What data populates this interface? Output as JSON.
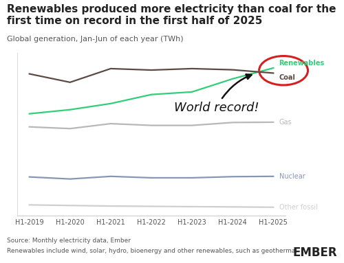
{
  "chart_data": {
    "type": "line",
    "title": "Renewables produced more electricity than coal for the first time on record in the first half of 2025",
    "subtitle": "Global generation, Jan-Jun of each year (TWh)",
    "source": "Source: Monthly electricity data, Ember",
    "footnote": "Renewables include wind, solar, hydro, bioenergy and other renewables, such as geothermal",
    "logo": "EMBER",
    "annotations": [
      "World record!"
    ],
    "categories": [
      "H1-2019",
      "H1-2020",
      "H1-2021",
      "H1-2022",
      "H1-2023",
      "H1-2024",
      "H1-2025"
    ],
    "series": [
      {
        "name": "Renewables",
        "color": "#2fcf78",
        "values": [
          3500,
          3640,
          3850,
          4160,
          4250,
          4700,
          5072
        ]
      },
      {
        "name": "Coal",
        "color": "#5b4a42",
        "values": [
          4870,
          4580,
          5050,
          5000,
          5050,
          5010,
          4896
        ]
      },
      {
        "name": "Gas",
        "color": "#b8b8b8",
        "values": [
          3050,
          2990,
          3160,
          3100,
          3100,
          3200,
          3210
        ]
      },
      {
        "name": "Nuclear",
        "color": "#8797b3",
        "values": [
          1330,
          1260,
          1350,
          1300,
          1300,
          1340,
          1350
        ]
      },
      {
        "name": "Other fossil",
        "color": "#cfcfcf",
        "values": [
          370,
          350,
          330,
          320,
          310,
          300,
          290
        ]
      }
    ],
    "ylim": [
      0,
      5600
    ],
    "tick_labels": "x",
    "grid": false
  }
}
